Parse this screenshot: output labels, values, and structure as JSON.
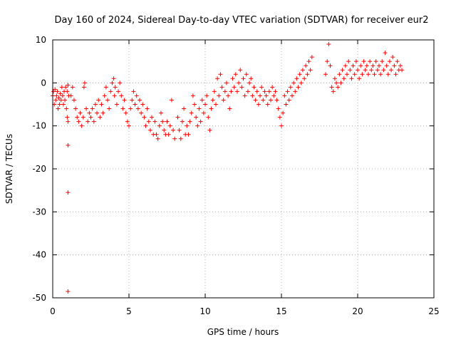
{
  "chart_data": {
    "type": "scatter",
    "title": "Day 160 of 2024, Sidereal Day-to-day VTEC variation (SDTVAR) for receiver eur2",
    "xlabel": "GPS time / hours",
    "ylabel": "SDTVAR / TECUs",
    "xlim": [
      0,
      25
    ],
    "ylim": [
      -50,
      10
    ],
    "xticks": [
      0,
      5,
      10,
      15,
      20,
      25
    ],
    "yticks": [
      -50,
      -40,
      -30,
      -20,
      -10,
      0,
      10
    ],
    "grid": true,
    "marker": "+",
    "series": [
      {
        "name": "SDTVAR eur2",
        "color": "#ff0000",
        "points": [
          [
            0.0,
            -3
          ],
          [
            0.05,
            -2
          ],
          [
            0.1,
            -5
          ],
          [
            0.15,
            -1.5
          ],
          [
            0.2,
            -4
          ],
          [
            0.25,
            -3
          ],
          [
            0.3,
            -2
          ],
          [
            0.35,
            -6
          ],
          [
            0.4,
            -3.5
          ],
          [
            0.45,
            -5
          ],
          [
            0.5,
            -2.5
          ],
          [
            0.55,
            -4
          ],
          [
            0.6,
            -1
          ],
          [
            0.65,
            -3
          ],
          [
            0.7,
            -5
          ],
          [
            0.75,
            -2
          ],
          [
            0.8,
            -4
          ],
          [
            0.85,
            -1
          ],
          [
            0.9,
            -6
          ],
          [
            0.95,
            -8
          ],
          [
            1.0,
            -9
          ],
          [
            1.0,
            -14.5
          ],
          [
            1.0,
            -25.5
          ],
          [
            1.0,
            -48.5
          ],
          [
            0.95,
            -2
          ],
          [
            1.0,
            -0.5
          ],
          [
            1.05,
            -3
          ],
          [
            1.2,
            -3
          ],
          [
            1.3,
            -1
          ],
          [
            1.4,
            -4
          ],
          [
            1.5,
            -6
          ],
          [
            1.6,
            -8
          ],
          [
            1.7,
            -9
          ],
          [
            1.8,
            -7
          ],
          [
            1.9,
            -10
          ],
          [
            2.0,
            -8
          ],
          [
            2.05,
            -1
          ],
          [
            2.1,
            0
          ],
          [
            2.2,
            -6
          ],
          [
            2.3,
            -9
          ],
          [
            2.4,
            -7
          ],
          [
            2.5,
            -8
          ],
          [
            2.6,
            -6
          ],
          [
            2.7,
            -9
          ],
          [
            2.8,
            -5
          ],
          [
            2.9,
            -7
          ],
          [
            3.0,
            -4
          ],
          [
            3.1,
            -8
          ],
          [
            3.2,
            -5
          ],
          [
            3.3,
            -7
          ],
          [
            3.4,
            -3
          ],
          [
            3.5,
            -1
          ],
          [
            3.6,
            -4
          ],
          [
            3.7,
            -6
          ],
          [
            3.8,
            -2
          ],
          [
            3.9,
            0
          ],
          [
            4.0,
            1
          ],
          [
            4.05,
            -3
          ],
          [
            4.1,
            -1
          ],
          [
            4.2,
            -5
          ],
          [
            4.3,
            -2
          ],
          [
            4.4,
            0
          ],
          [
            4.5,
            -3
          ],
          [
            4.6,
            -6
          ],
          [
            4.7,
            -4
          ],
          [
            4.8,
            -7
          ],
          [
            4.9,
            -9
          ],
          [
            5.0,
            -10
          ],
          [
            5.1,
            -6
          ],
          [
            5.2,
            -4
          ],
          [
            5.3,
            -2
          ],
          [
            5.4,
            -5
          ],
          [
            5.5,
            -3
          ],
          [
            5.6,
            -6
          ],
          [
            5.7,
            -4
          ],
          [
            5.8,
            -7
          ],
          [
            5.9,
            -5
          ],
          [
            6.0,
            -8
          ],
          [
            6.1,
            -10
          ],
          [
            6.2,
            -6
          ],
          [
            6.3,
            -9
          ],
          [
            6.4,
            -11
          ],
          [
            6.5,
            -8
          ],
          [
            6.6,
            -12
          ],
          [
            6.7,
            -9
          ],
          [
            6.8,
            -12
          ],
          [
            6.9,
            -13
          ],
          [
            7.0,
            -10
          ],
          [
            7.1,
            -7
          ],
          [
            7.2,
            -9
          ],
          [
            7.3,
            -11
          ],
          [
            7.4,
            -12
          ],
          [
            7.5,
            -9
          ],
          [
            7.6,
            -12
          ],
          [
            7.7,
            -10
          ],
          [
            7.8,
            -4
          ],
          [
            7.9,
            -11
          ],
          [
            8.0,
            -13
          ],
          [
            8.2,
            -8
          ],
          [
            8.3,
            -11
          ],
          [
            8.4,
            -13
          ],
          [
            8.5,
            -9
          ],
          [
            8.6,
            -6
          ],
          [
            8.7,
            -12
          ],
          [
            8.8,
            -10
          ],
          [
            8.9,
            -12
          ],
          [
            9.0,
            -9
          ],
          [
            9.1,
            -7
          ],
          [
            9.2,
            -3
          ],
          [
            9.3,
            -5
          ],
          [
            9.4,
            -8
          ],
          [
            9.5,
            -10
          ],
          [
            9.6,
            -6
          ],
          [
            9.7,
            -9
          ],
          [
            9.8,
            -4
          ],
          [
            9.9,
            -7
          ],
          [
            10.0,
            -5
          ],
          [
            10.1,
            -3
          ],
          [
            10.2,
            -8
          ],
          [
            10.3,
            -11
          ],
          [
            10.4,
            -6
          ],
          [
            10.5,
            -4
          ],
          [
            10.6,
            -2
          ],
          [
            10.7,
            -5
          ],
          [
            10.8,
            1
          ],
          [
            10.9,
            -3
          ],
          [
            11.0,
            2
          ],
          [
            11.1,
            -1
          ],
          [
            11.2,
            -4
          ],
          [
            11.3,
            -2
          ],
          [
            11.4,
            0
          ],
          [
            11.5,
            -3
          ],
          [
            11.6,
            -6
          ],
          [
            11.7,
            -2
          ],
          [
            11.8,
            1
          ],
          [
            11.9,
            -1
          ],
          [
            12.0,
            2
          ],
          [
            12.1,
            -2
          ],
          [
            12.2,
            0
          ],
          [
            12.3,
            3
          ],
          [
            12.4,
            -1
          ],
          [
            12.5,
            1
          ],
          [
            12.6,
            -3
          ],
          [
            12.7,
            2
          ],
          [
            12.8,
            -2
          ],
          [
            12.9,
            0
          ],
          [
            13.0,
            1
          ],
          [
            13.1,
            -3
          ],
          [
            13.2,
            -1
          ],
          [
            13.3,
            -4
          ],
          [
            13.4,
            -2
          ],
          [
            13.5,
            -5
          ],
          [
            13.6,
            -3
          ],
          [
            13.7,
            -1
          ],
          [
            13.8,
            -4
          ],
          [
            13.9,
            -2
          ],
          [
            14.0,
            -3
          ],
          [
            14.1,
            -5
          ],
          [
            14.2,
            -2
          ],
          [
            14.3,
            -4
          ],
          [
            14.4,
            -1
          ],
          [
            14.5,
            -3
          ],
          [
            14.6,
            -2
          ],
          [
            14.7,
            -4
          ],
          [
            14.8,
            -6
          ],
          [
            14.9,
            -8
          ],
          [
            15.0,
            -10
          ],
          [
            15.1,
            -7
          ],
          [
            15.2,
            -3
          ],
          [
            15.3,
            -5
          ],
          [
            15.4,
            -2
          ],
          [
            15.5,
            -4
          ],
          [
            15.6,
            -1
          ],
          [
            15.7,
            -3
          ],
          [
            15.8,
            0
          ],
          [
            15.9,
            -2
          ],
          [
            16.0,
            1
          ],
          [
            16.1,
            -1
          ],
          [
            16.2,
            2
          ],
          [
            16.3,
            0
          ],
          [
            16.4,
            3
          ],
          [
            16.5,
            1
          ],
          [
            16.6,
            4
          ],
          [
            16.7,
            2
          ],
          [
            16.8,
            5
          ],
          [
            16.9,
            3
          ],
          [
            17.0,
            6
          ],
          [
            17.9,
            2
          ],
          [
            18.0,
            5
          ],
          [
            18.1,
            9
          ],
          [
            18.2,
            4
          ],
          [
            18.3,
            -1
          ],
          [
            18.4,
            -2
          ],
          [
            18.5,
            1
          ],
          [
            18.6,
            0
          ],
          [
            18.7,
            -1
          ],
          [
            18.8,
            2
          ],
          [
            18.9,
            0
          ],
          [
            19.0,
            3
          ],
          [
            19.1,
            1
          ],
          [
            19.2,
            4
          ],
          [
            19.3,
            2
          ],
          [
            19.4,
            5
          ],
          [
            19.5,
            3
          ],
          [
            19.6,
            1
          ],
          [
            19.7,
            4
          ],
          [
            19.8,
            2
          ],
          [
            19.9,
            5
          ],
          [
            20.0,
            3
          ],
          [
            20.1,
            1
          ],
          [
            20.2,
            4
          ],
          [
            20.3,
            2
          ],
          [
            20.4,
            5
          ],
          [
            20.5,
            3
          ],
          [
            20.6,
            4
          ],
          [
            20.7,
            2
          ],
          [
            20.8,
            5
          ],
          [
            20.9,
            3
          ],
          [
            21.0,
            4
          ],
          [
            21.1,
            2
          ],
          [
            21.2,
            5
          ],
          [
            21.3,
            3
          ],
          [
            21.4,
            4
          ],
          [
            21.5,
            2
          ],
          [
            21.6,
            5
          ],
          [
            21.7,
            3
          ],
          [
            21.8,
            7
          ],
          [
            21.9,
            4
          ],
          [
            22.0,
            2
          ],
          [
            22.1,
            5
          ],
          [
            22.2,
            3
          ],
          [
            22.3,
            6
          ],
          [
            22.4,
            4
          ],
          [
            22.5,
            2
          ],
          [
            22.6,
            5
          ],
          [
            22.7,
            3
          ],
          [
            22.8,
            4
          ],
          [
            22.9,
            3
          ]
        ]
      }
    ]
  }
}
